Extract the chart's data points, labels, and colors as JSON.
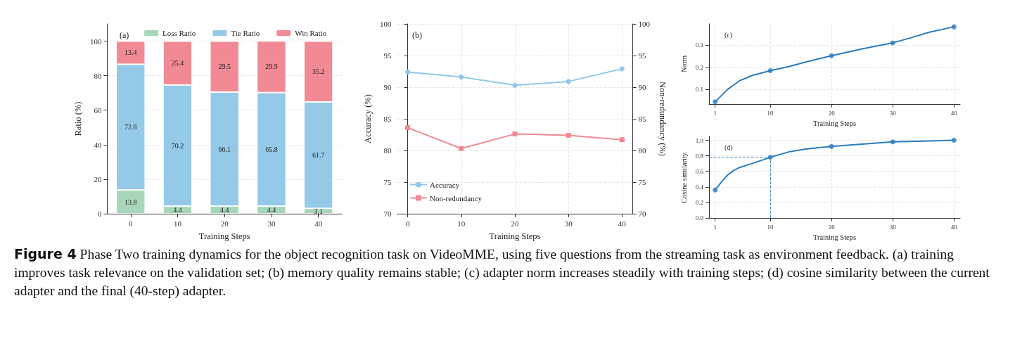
{
  "chart_data": [
    {
      "type": "bar",
      "stacked": true,
      "xlabel": "Training Steps",
      "ylabel": "Ratio (%)",
      "categories": [
        "0",
        "10",
        "20",
        "30",
        "40"
      ],
      "series": [
        {
          "name": "Loss Ratio",
          "color": "#a7d7b8",
          "values": [
            13.8,
            4.4,
            4.4,
            4.4,
            3.1
          ]
        },
        {
          "name": "Tie Ratio",
          "color": "#94c9e8",
          "values": [
            72.8,
            70.2,
            66.1,
            65.8,
            61.7
          ]
        },
        {
          "name": "Win Ratio",
          "color": "#f28a95",
          "values": [
            13.4,
            25.4,
            29.5,
            29.9,
            35.2
          ]
        }
      ],
      "ylim": [
        0,
        110
      ],
      "yticks": [
        0,
        20,
        40,
        60,
        80,
        100
      ],
      "grid": "y",
      "legend": "top",
      "data_labels": true,
      "annotations": [
        "(a)",
        "Figure 4 Phase Two training dynamics for the object recognition task on VideoMME, using five questions from the streaming task as environment feedback. (a) training improves task relevance on the validation set; (b) memory quality remains stable; (c) adapter norm increases steadily with training steps; (d) cosine similarity between the current adapter and the final (40-step) adapter."
      ]
    },
    {
      "type": "line",
      "xlabel": "Training Steps",
      "ylabel": "Accuracy (%)",
      "y2label": "Non-redundancy (%)",
      "x": [
        0,
        10,
        20,
        30,
        40
      ],
      "series": [
        {
          "name": "Accuracy",
          "color": "#8fc8ea",
          "marker": "circle",
          "values": [
            92.4,
            91.6,
            90.3,
            90.9,
            92.9
          ]
        },
        {
          "name": "Non-redundancy",
          "color": "#f08a93",
          "marker": "square",
          "axis": "y2",
          "values": [
            83.6,
            80.3,
            82.6,
            82.4,
            81.7
          ]
        }
      ],
      "xlim": [
        -2,
        42
      ],
      "xticks": [
        0,
        10,
        20,
        30,
        40
      ],
      "ylim": [
        70,
        100
      ],
      "yticks": [
        70,
        75,
        80,
        85,
        90,
        95,
        100
      ],
      "y2lim": [
        70,
        100
      ],
      "y2ticks": [
        70,
        75,
        80,
        85,
        90,
        95,
        100
      ],
      "grid": true,
      "legend": "bottom left",
      "annotations": [
        "(b)"
      ]
    },
    {
      "type": "line",
      "xlabel": "Training Steps",
      "ylabel": "Norm",
      "series": [
        {
          "color": "#2a7dc0",
          "marker": "none",
          "x": [
            1,
            3,
            5,
            7,
            10,
            13,
            16,
            20,
            25,
            30,
            33,
            36,
            40
          ],
          "values": [
            0.045,
            0.1,
            0.14,
            0.163,
            0.185,
            0.203,
            0.225,
            0.252,
            0.283,
            0.31,
            0.333,
            0.358,
            0.382
          ]
        },
        {
          "type": "scatter",
          "color": "#2a7dc0",
          "marker": "circle",
          "x": [
            1,
            10,
            20,
            30,
            40
          ],
          "values": [
            0.045,
            0.185,
            0.252,
            0.31,
            0.382
          ]
        }
      ],
      "xlim": [
        0,
        41
      ],
      "xticks": [
        1,
        10,
        20,
        30,
        40
      ],
      "ylim": [
        0.035,
        0.395
      ],
      "yticks": [
        0.1,
        0.2,
        0.3
      ],
      "grid": true,
      "annotations": [
        "(c)"
      ]
    },
    {
      "type": "line",
      "xlabel": "Training Steps",
      "ylabel": "Cosine similarity.",
      "series": [
        {
          "color": "#2a7dc0",
          "marker": "none",
          "x": [
            1,
            2,
            3,
            4,
            5,
            7,
            10,
            13,
            16,
            20,
            25,
            30,
            35,
            40
          ],
          "values": [
            0.36,
            0.46,
            0.55,
            0.61,
            0.65,
            0.7,
            0.78,
            0.85,
            0.89,
            0.92,
            0.95,
            0.98,
            0.99,
            1.0
          ]
        },
        {
          "type": "scatter",
          "color": "#2a7dc0",
          "marker": "circle",
          "x": [
            1,
            10,
            20,
            30,
            40
          ],
          "values": [
            0.36,
            0.78,
            0.92,
            0.98,
            1.0
          ]
        }
      ],
      "xlim": [
        0,
        41
      ],
      "xticks": [
        1,
        10,
        20,
        30,
        40
      ],
      "ylim": [
        0,
        1.05
      ],
      "yticks": [
        {
          "value": 0,
          "label": "0.0"
        },
        0.2,
        0.4,
        0.6,
        0.8,
        {
          "value": 1,
          "label": "1.0"
        }
      ],
      "grid": true,
      "ref_lines": [
        {
          "axis": "x",
          "value": 10,
          "color": "#4a90d0",
          "line_style": "dashed"
        },
        {
          "axis": "y",
          "value": 0.78,
          "color": "#4a90d0",
          "line_style": "dashed"
        }
      ],
      "annotations": [
        "(d)"
      ]
    }
  ]
}
